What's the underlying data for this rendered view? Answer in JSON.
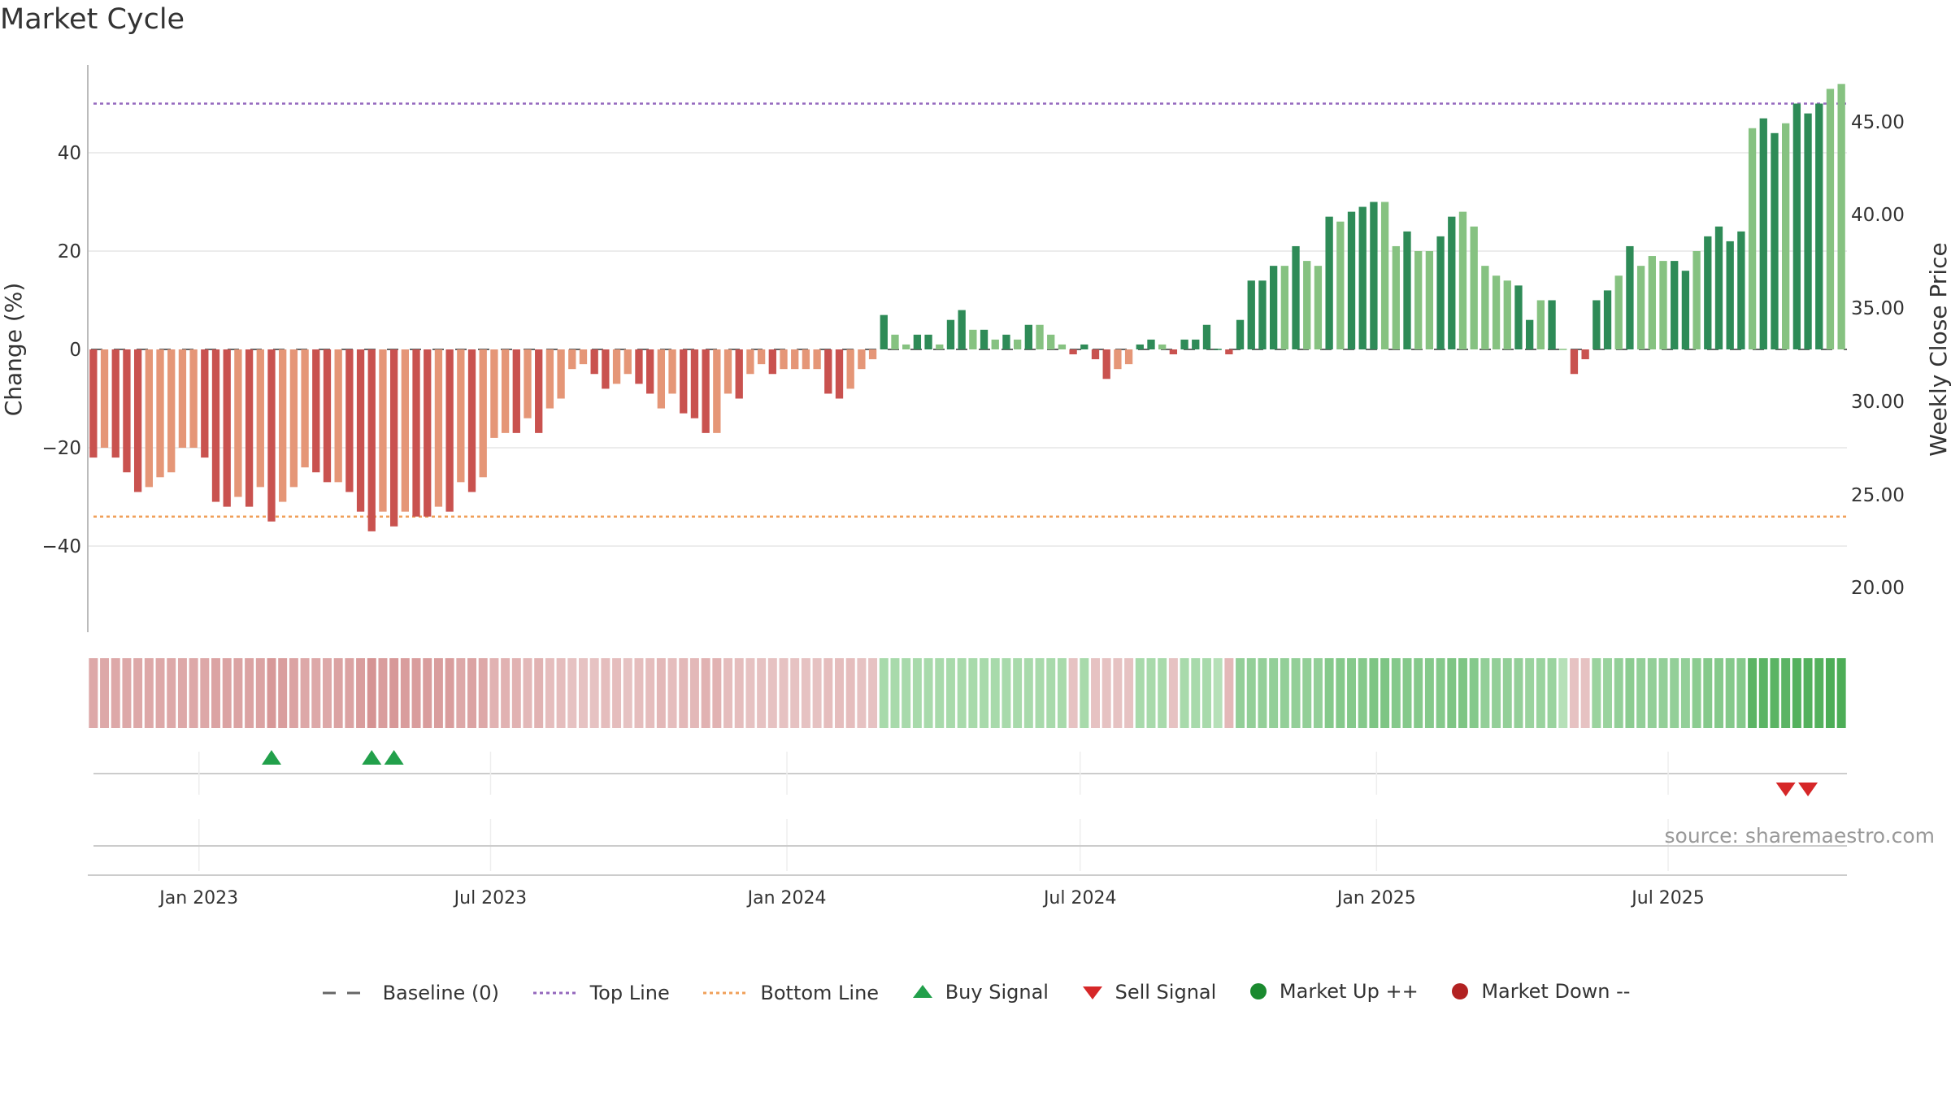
{
  "chart_data": {
    "type": "bar",
    "title": "Market Cycle",
    "ylabel": "Change (%)",
    "y2label": "Weekly Close Price",
    "ylim": [
      -58,
      58
    ],
    "y_ticks": [
      "40",
      "20",
      "0",
      "−20",
      "−40"
    ],
    "y2_ticks": [
      "45.00",
      "40.00",
      "35.00",
      "30.00",
      "25.00",
      "20.00"
    ],
    "x_ticks": [
      "Jan 2023",
      "Jul 2023",
      "Jan 2024",
      "Jul 2024",
      "Jan 2025",
      "Jul 2025"
    ],
    "x_range": [
      "2022-10-24",
      "2025-10-20"
    ],
    "top_line": 50,
    "bottom_line": -34,
    "grid": true,
    "legend_position": "bottom",
    "colors": {
      "negative_dark": "#c9524f",
      "negative_light": "#e59677",
      "positive_dark": "#2e8b57",
      "positive_light": "#86c281",
      "top_line": "#9467bd",
      "bottom_line": "#f0a05a",
      "buy": "#22a04b",
      "sell": "#d62728",
      "market_up": "#1a8a2f",
      "market_down": "#b22222"
    },
    "first_week": "2022-10-24",
    "values": [
      -22,
      -20,
      -22,
      -25,
      -29,
      -28,
      -26,
      -25,
      -20,
      -20,
      -22,
      -31,
      -32,
      -30,
      -32,
      -28,
      -35,
      -31,
      -28,
      -24,
      -25,
      -27,
      -27,
      -29,
      -33,
      -37,
      -33,
      -36,
      -33,
      -34,
      -34,
      -32,
      -33,
      -27,
      -29,
      -26,
      -18,
      -17,
      -17,
      -14,
      -17,
      -12,
      -10,
      -4,
      -3,
      -5,
      -8,
      -7,
      -5,
      -7,
      -9,
      -12,
      -9,
      -13,
      -14,
      -17,
      -17,
      -9,
      -10,
      -5,
      -3,
      -5,
      -4,
      -4,
      -4,
      -4,
      -9,
      -10,
      -8,
      -4,
      -2,
      7,
      3,
      1,
      3,
      3,
      1,
      6,
      8,
      4,
      4,
      2,
      3,
      2,
      5,
      5,
      3,
      1,
      -1,
      1,
      -2,
      -6,
      -4,
      -3,
      1,
      2,
      1,
      -1,
      2,
      2,
      5,
      0,
      -1,
      6,
      14,
      14,
      17,
      17,
      21,
      18,
      17,
      27,
      26,
      28,
      29,
      30,
      30,
      21,
      24,
      20,
      20,
      23,
      27,
      28,
      25,
      17,
      15,
      14,
      13,
      6,
      10,
      10,
      0,
      -5,
      -2,
      10,
      12,
      15,
      21,
      17,
      19,
      18,
      18,
      16,
      20,
      23,
      25,
      22,
      24,
      45,
      47,
      44,
      46,
      50,
      48,
      50,
      53,
      54
    ],
    "bar_shade": [
      "d",
      "l",
      "d",
      "d",
      "d",
      "l",
      "l",
      "l",
      "l",
      "l",
      "d",
      "d",
      "d",
      "l",
      "d",
      "l",
      "d",
      "l",
      "l",
      "l",
      "d",
      "d",
      "l",
      "d",
      "d",
      "d",
      "l",
      "d",
      "l",
      "d",
      "d",
      "l",
      "d",
      "l",
      "d",
      "l",
      "l",
      "l",
      "d",
      "l",
      "d",
      "l",
      "l",
      "l",
      "l",
      "d",
      "d",
      "l",
      "l",
      "d",
      "d",
      "l",
      "l",
      "d",
      "d",
      "d",
      "l",
      "l",
      "d",
      "l",
      "l",
      "d",
      "l",
      "l",
      "l",
      "l",
      "d",
      "d",
      "l",
      "l",
      "l",
      "d",
      "l",
      "l",
      "d",
      "d",
      "l",
      "d",
      "d",
      "l",
      "d",
      "l",
      "d",
      "l",
      "d",
      "l",
      "l",
      "l",
      "d",
      "d",
      "d",
      "d",
      "l",
      "l",
      "d",
      "d",
      "l",
      "d",
      "d",
      "d",
      "d",
      "d",
      "d",
      "d",
      "d",
      "d",
      "d",
      "l",
      "d",
      "l",
      "l",
      "d",
      "l",
      "d",
      "d",
      "d",
      "l",
      "l",
      "d",
      "l",
      "l",
      "d",
      "d",
      "l",
      "l",
      "l",
      "l",
      "l",
      "d",
      "d",
      "l",
      "d",
      "l",
      "d",
      "d",
      "d",
      "d",
      "l",
      "d",
      "l",
      "l",
      "l",
      "d",
      "d",
      "l",
      "d",
      "d",
      "d",
      "d",
      "l",
      "d",
      "d",
      "l",
      "d",
      "d",
      "d"
    ],
    "buy_signals": [
      16,
      25,
      27
    ],
    "sell_signals": [
      152,
      154
    ],
    "cycle_strip": [
      0.45,
      0.45,
      0.45,
      0.45,
      0.45,
      0.45,
      0.45,
      0.45,
      0.45,
      0.45,
      0.45,
      0.5,
      0.5,
      0.5,
      0.5,
      0.5,
      0.6,
      0.55,
      0.5,
      0.45,
      0.45,
      0.45,
      0.5,
      0.5,
      0.55,
      0.65,
      0.55,
      0.6,
      0.55,
      0.55,
      0.55,
      0.55,
      0.55,
      0.45,
      0.5,
      0.45,
      0.35,
      0.35,
      0.35,
      0.3,
      0.35,
      0.25,
      0.25,
      0.2,
      0.2,
      0.2,
      0.25,
      0.25,
      0.2,
      0.25,
      0.25,
      0.3,
      0.25,
      0.3,
      0.3,
      0.35,
      0.35,
      0.25,
      0.25,
      0.2,
      0.2,
      0.2,
      0.2,
      0.2,
      0.2,
      0.2,
      0.25,
      0.25,
      0.25,
      0.2,
      0.2,
      0.3,
      0.3,
      0.3,
      0.3,
      0.3,
      0.3,
      0.3,
      0.3,
      0.3,
      0.3,
      0.3,
      0.3,
      0.3,
      0.3,
      0.3,
      0.3,
      0.3,
      0.2,
      0.3,
      0.2,
      0.2,
      0.2,
      0.2,
      0.3,
      0.3,
      0.3,
      0.2,
      0.3,
      0.3,
      0.3,
      0.2,
      0.3,
      0.45,
      0.45,
      0.45,
      0.45,
      0.45,
      0.45,
      0.45,
      0.45,
      0.55,
      0.55,
      0.55,
      0.55,
      0.6,
      0.6,
      0.55,
      0.55,
      0.55,
      0.55,
      0.55,
      0.6,
      0.6,
      0.55,
      0.45,
      0.45,
      0.45,
      0.45,
      0.4,
      0.4,
      0.4,
      0.2,
      0.2,
      0.2,
      0.4,
      0.4,
      0.45,
      0.5,
      0.45,
      0.45,
      0.45,
      0.45,
      0.45,
      0.5,
      0.55,
      0.55,
      0.55,
      0.55,
      0.85,
      0.85,
      0.85,
      0.85,
      0.9,
      0.9,
      0.9,
      0.95,
      0.95
    ]
  },
  "source_note": "source: sharemaestro.com",
  "legend": {
    "baseline": "Baseline (0)",
    "top_line": "Top Line",
    "bottom_line": "Bottom Line",
    "buy": "Buy Signal",
    "sell": "Sell Signal",
    "market_up": "Market Up ++",
    "market_down": "Market Down --"
  }
}
